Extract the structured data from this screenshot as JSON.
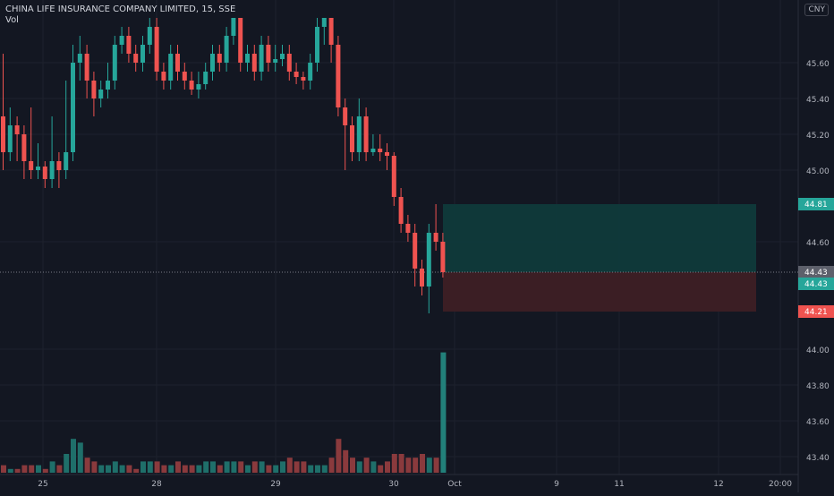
{
  "header": {
    "title": "CHINA LIFE INSURANCE COMPANY LIMITED, 15, SSE",
    "volume_label": "Vol",
    "currency_button": "CNY"
  },
  "colors": {
    "background": "#131722",
    "up": "#26a69a",
    "down": "#ef5350",
    "grid": "#1e222d",
    "text": "#b2b5be",
    "target_zone": "#0f3a3b",
    "stop_zone": "#3d1f25"
  },
  "chart_data": {
    "type": "candlestick",
    "y_axis_ticks": [
      "45.60",
      "45.40",
      "45.20",
      "45.00",
      "44.60",
      "44.00",
      "43.80",
      "43.60",
      "43.40"
    ],
    "y_range": [
      43.35,
      45.85
    ],
    "x_axis_ticks": [
      "25",
      "28",
      "29",
      "30",
      "Oct",
      "9",
      "11",
      "12",
      "20:00"
    ],
    "price_labels": [
      {
        "value": "44.81",
        "price": 44.81,
        "kind": "target"
      },
      {
        "value": "44.43",
        "price": 44.43,
        "kind": "current"
      },
      {
        "value": "44.43",
        "price": 44.43,
        "kind": "entry"
      },
      {
        "value": "44.21",
        "price": 44.21,
        "kind": "stop"
      }
    ],
    "position": {
      "entry": 44.43,
      "target": 44.81,
      "stop": 44.21
    },
    "candles": [
      [
        45.3,
        45.1,
        45.65,
        45.0,
        -0.05
      ],
      [
        45.1,
        45.25,
        45.35,
        45.05,
        -0.06
      ],
      [
        45.25,
        45.2,
        45.3,
        45.05,
        -0.06
      ],
      [
        45.2,
        45.05,
        45.25,
        44.95,
        -0.05
      ],
      [
        45.05,
        45.0,
        45.35,
        44.95,
        -0.05
      ],
      [
        45.0,
        45.02,
        45.15,
        44.95,
        -0.05
      ],
      [
        45.02,
        44.95,
        45.05,
        44.9,
        -0.06
      ],
      [
        44.95,
        45.05,
        45.3,
        44.9,
        -0.04
      ],
      [
        45.05,
        45.0,
        45.1,
        44.9,
        -0.05
      ],
      [
        45.0,
        45.1,
        45.5,
        44.95,
        -0.02
      ],
      [
        45.1,
        45.6,
        45.7,
        45.05,
        0.02
      ],
      [
        45.6,
        45.65,
        45.75,
        45.5,
        0.01
      ],
      [
        45.65,
        45.5,
        45.7,
        45.4,
        -0.03
      ],
      [
        45.5,
        45.4,
        45.55,
        45.3,
        -0.04
      ],
      [
        45.4,
        45.45,
        45.5,
        45.35,
        -0.05
      ],
      [
        45.45,
        45.5,
        45.6,
        45.4,
        -0.05
      ],
      [
        45.5,
        45.7,
        45.75,
        45.45,
        -0.04
      ],
      [
        45.7,
        45.75,
        45.8,
        45.65,
        -0.05
      ],
      [
        45.75,
        45.65,
        45.8,
        45.6,
        -0.05
      ],
      [
        45.65,
        45.6,
        45.7,
        45.55,
        -0.06
      ],
      [
        45.6,
        45.7,
        45.75,
        45.55,
        -0.04
      ],
      [
        45.7,
        45.8,
        45.85,
        45.65,
        -0.04
      ],
      [
        45.8,
        45.55,
        45.85,
        45.5,
        -0.04
      ],
      [
        45.55,
        45.5,
        45.6,
        45.45,
        -0.05
      ],
      [
        45.5,
        45.65,
        45.7,
        45.45,
        -0.05
      ],
      [
        45.65,
        45.55,
        45.7,
        45.5,
        -0.04
      ],
      [
        45.55,
        45.5,
        45.6,
        45.45,
        -0.05
      ],
      [
        45.5,
        45.45,
        45.55,
        45.42,
        -0.05
      ],
      [
        45.45,
        45.48,
        45.55,
        45.4,
        -0.05
      ],
      [
        45.48,
        45.55,
        45.6,
        45.45,
        -0.04
      ],
      [
        45.55,
        45.65,
        45.7,
        45.5,
        -0.04
      ],
      [
        45.65,
        45.6,
        45.7,
        45.55,
        -0.05
      ],
      [
        45.6,
        45.75,
        45.8,
        45.55,
        -0.04
      ],
      [
        45.75,
        45.85,
        45.85,
        45.7,
        -0.04
      ],
      [
        45.85,
        45.6,
        45.85,
        45.55,
        -0.04
      ],
      [
        45.6,
        45.65,
        45.7,
        45.55,
        -0.05
      ],
      [
        45.65,
        45.55,
        45.7,
        45.5,
        -0.04
      ],
      [
        45.55,
        45.7,
        45.75,
        45.5,
        -0.04
      ],
      [
        45.7,
        45.6,
        45.75,
        45.55,
        -0.05
      ],
      [
        45.6,
        45.62,
        45.7,
        45.55,
        -0.05
      ],
      [
        45.62,
        45.65,
        45.7,
        45.58,
        -0.04
      ],
      [
        45.65,
        45.55,
        45.7,
        45.5,
        -0.03
      ],
      [
        45.55,
        45.52,
        45.6,
        45.48,
        -0.04
      ],
      [
        45.52,
        45.5,
        45.55,
        45.45,
        -0.04
      ],
      [
        45.5,
        45.6,
        45.65,
        45.45,
        -0.05
      ],
      [
        45.6,
        45.8,
        45.85,
        45.55,
        -0.05
      ],
      [
        45.8,
        45.85,
        45.85,
        45.7,
        -0.05
      ],
      [
        45.85,
        45.7,
        45.85,
        45.6,
        -0.03
      ],
      [
        45.7,
        45.35,
        45.75,
        45.3,
        0.02
      ],
      [
        45.35,
        45.25,
        45.4,
        45.0,
        -0.01
      ],
      [
        45.25,
        45.1,
        45.3,
        45.05,
        -0.03
      ],
      [
        45.1,
        45.3,
        45.4,
        45.05,
        -0.04
      ],
      [
        45.3,
        45.1,
        45.35,
        45.05,
        -0.03
      ],
      [
        45.1,
        45.12,
        45.2,
        45.08,
        -0.04
      ],
      [
        45.12,
        45.1,
        45.2,
        45.05,
        -0.05
      ],
      [
        45.1,
        45.08,
        45.15,
        45.0,
        -0.04
      ],
      [
        45.08,
        44.85,
        45.1,
        44.8,
        -0.02
      ],
      [
        44.85,
        44.7,
        44.9,
        44.65,
        -0.02
      ],
      [
        44.7,
        44.65,
        44.75,
        44.6,
        -0.03
      ],
      [
        44.65,
        44.45,
        44.7,
        44.35,
        -0.03
      ],
      [
        44.45,
        44.35,
        44.5,
        44.3,
        -0.02
      ],
      [
        44.35,
        44.65,
        44.7,
        44.2,
        -0.03
      ],
      [
        44.65,
        44.6,
        44.81,
        44.55,
        -0.03
      ],
      [
        44.6,
        44.43,
        44.65,
        44.4,
        0.25
      ]
    ]
  }
}
